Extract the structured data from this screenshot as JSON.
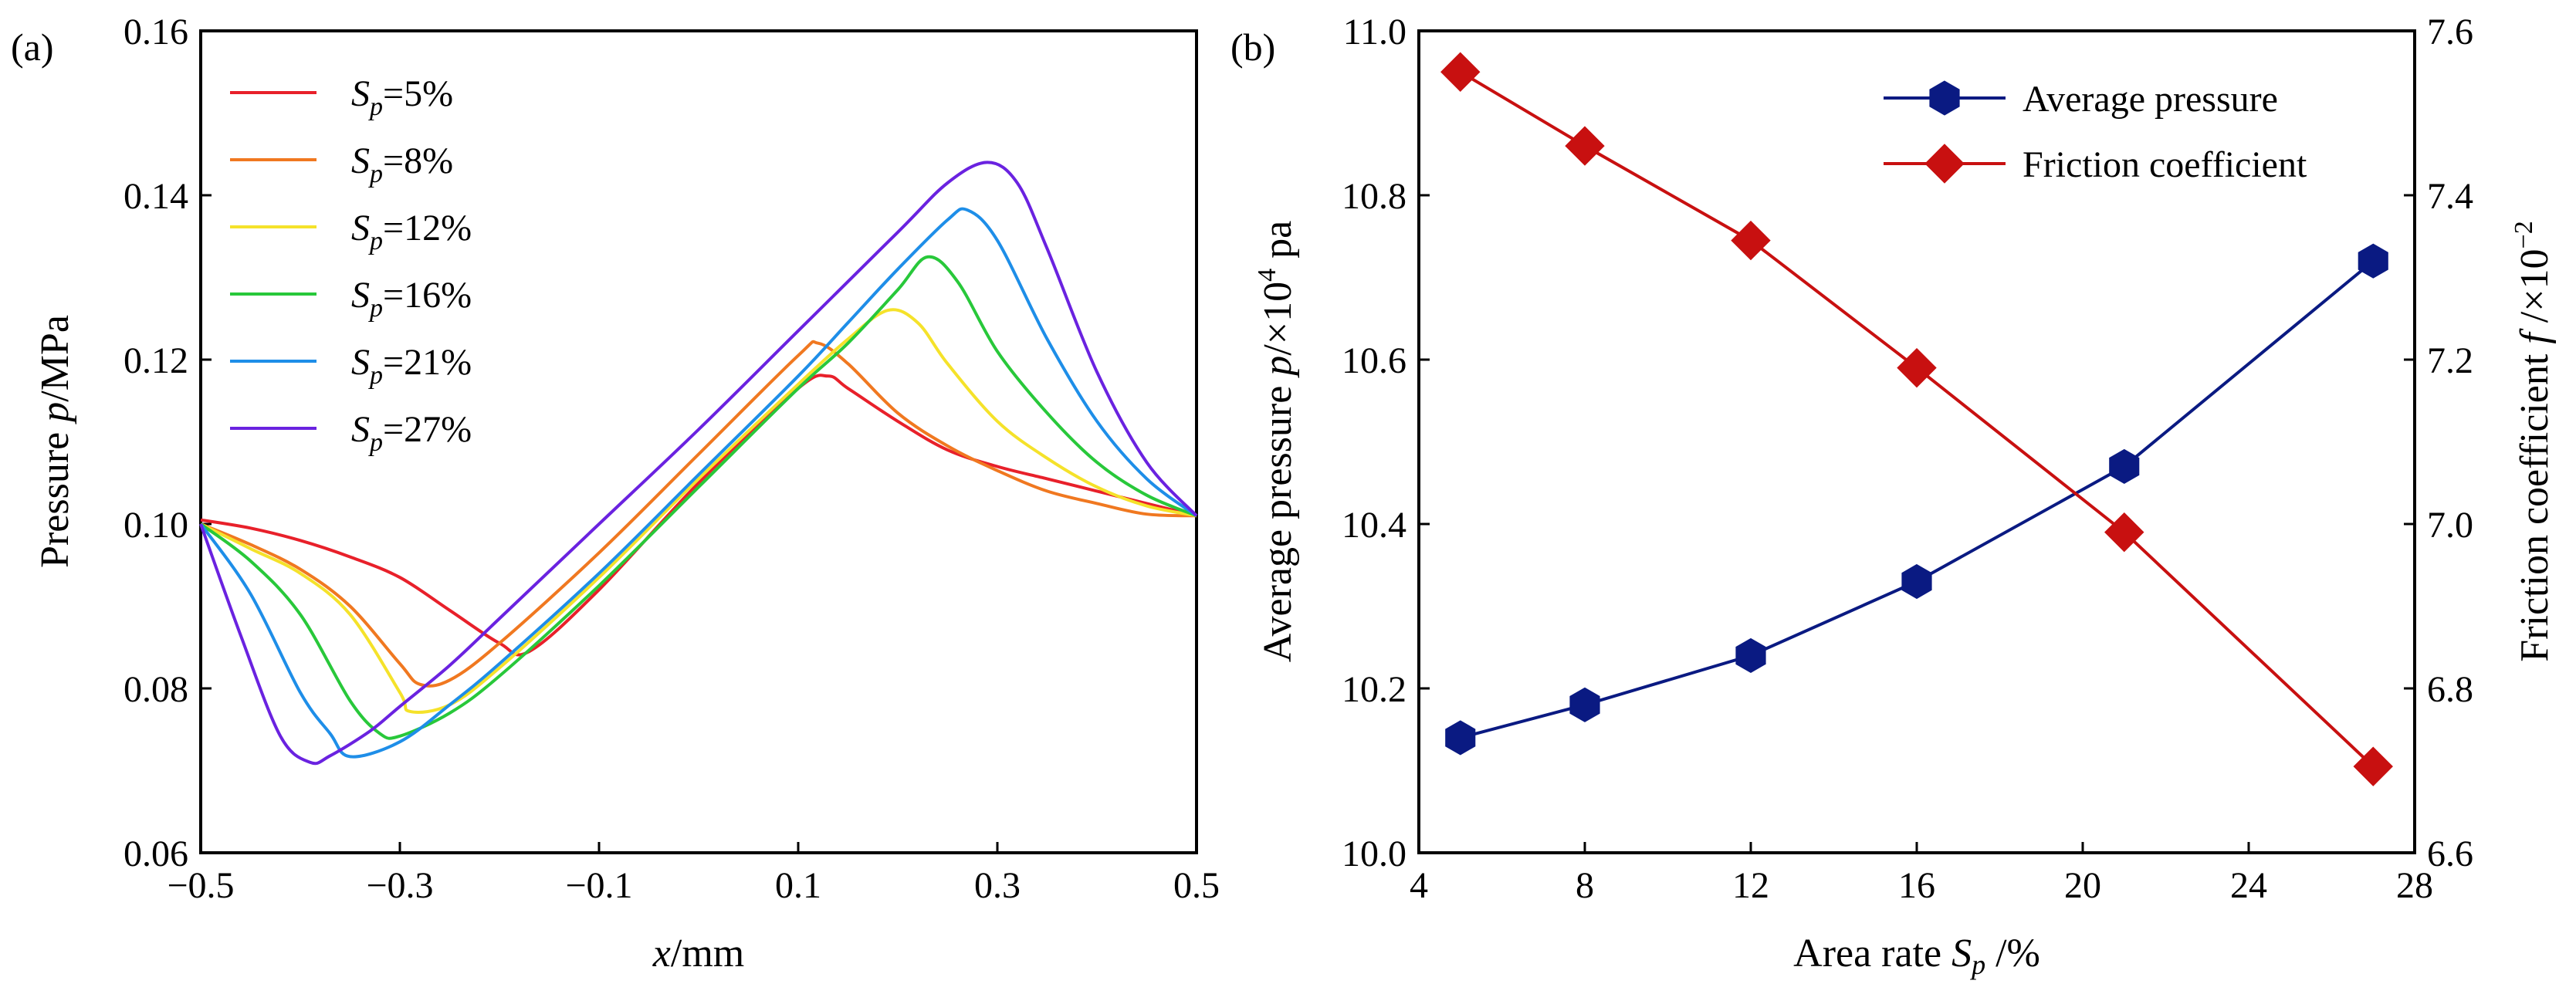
{
  "chart_data": [
    {
      "panel": "(a)",
      "type": "line",
      "xlabel_var": "x",
      "xlabel_unit": "/mm",
      "ylabel_prefix": "Pressure ",
      "ylabel_var": "p",
      "ylabel_unit": "/MPa",
      "xlim": [
        -0.5,
        0.5
      ],
      "ylim": [
        0.06,
        0.16
      ],
      "xticks": [
        -0.5,
        -0.3,
        -0.1,
        0.1,
        0.3,
        0.5
      ],
      "xtick_labels": [
        "−0.5",
        "−0.3",
        "−0.1",
        "0.1",
        "0.3",
        "0.5"
      ],
      "yticks": [
        0.06,
        0.08,
        0.1,
        0.12,
        0.14,
        0.16
      ],
      "ytick_labels": [
        "0.06",
        "0.08",
        "0.10",
        "0.12",
        "0.14",
        "0.16"
      ],
      "legend_position": "top-left",
      "series": [
        {
          "name": "S",
          "sub": "p",
          "value_label": "=5%",
          "color": "#e8202a",
          "x": [
            -0.5,
            -0.45,
            -0.4,
            -0.35,
            -0.3,
            -0.25,
            -0.2,
            -0.17,
            -0.1,
            0.0,
            0.1,
            0.13,
            0.15,
            0.2,
            0.25,
            0.3,
            0.35,
            0.4,
            0.45,
            0.5
          ],
          "y": [
            0.1005,
            0.0995,
            0.098,
            0.096,
            0.0935,
            0.0895,
            0.0855,
            0.0845,
            0.092,
            0.105,
            0.1165,
            0.118,
            0.1165,
            0.1125,
            0.109,
            0.107,
            0.1055,
            0.104,
            0.1025,
            0.101
          ]
        },
        {
          "name": "S",
          "sub": "p",
          "value_label": "=8%",
          "color": "#f07820",
          "x": [
            -0.5,
            -0.45,
            -0.4,
            -0.35,
            -0.3,
            -0.28,
            -0.25,
            -0.2,
            -0.1,
            0.0,
            0.1,
            0.12,
            0.15,
            0.2,
            0.25,
            0.3,
            0.35,
            0.4,
            0.45,
            0.5
          ],
          "y": [
            0.1,
            0.0975,
            0.0945,
            0.09,
            0.083,
            0.0805,
            0.081,
            0.0855,
            0.0965,
            0.1085,
            0.1205,
            0.122,
            0.1195,
            0.1135,
            0.1095,
            0.1065,
            0.104,
            0.1025,
            0.1012,
            0.101
          ]
        },
        {
          "name": "S",
          "sub": "p",
          "value_label": "=12%",
          "color": "#f5e22a",
          "x": [
            -0.5,
            -0.45,
            -0.4,
            -0.35,
            -0.3,
            -0.29,
            -0.25,
            -0.2,
            -0.1,
            0.0,
            0.1,
            0.15,
            0.19,
            0.22,
            0.25,
            0.3,
            0.35,
            0.4,
            0.45,
            0.5
          ],
          "y": [
            0.1,
            0.097,
            0.094,
            0.089,
            0.0795,
            0.0772,
            0.078,
            0.0825,
            0.0935,
            0.1055,
            0.117,
            0.1225,
            0.126,
            0.1245,
            0.1195,
            0.1125,
            0.108,
            0.1045,
            0.1022,
            0.101
          ]
        },
        {
          "name": "S",
          "sub": "p",
          "value_label": "=16%",
          "color": "#28c83a",
          "x": [
            -0.5,
            -0.45,
            -0.4,
            -0.35,
            -0.32,
            -0.3,
            -0.25,
            -0.2,
            -0.1,
            0.0,
            0.1,
            0.15,
            0.2,
            0.23,
            0.26,
            0.3,
            0.35,
            0.4,
            0.45,
            0.5
          ],
          "y": [
            0.1,
            0.0955,
            0.089,
            0.0785,
            0.0745,
            0.0742,
            0.077,
            0.0815,
            0.0925,
            0.1045,
            0.1165,
            0.122,
            0.1285,
            0.1325,
            0.1295,
            0.121,
            0.1135,
            0.1075,
            0.1035,
            0.101
          ]
        },
        {
          "name": "S",
          "sub": "p",
          "value_label": "=21%",
          "color": "#1e8ee8",
          "x": [
            -0.5,
            -0.45,
            -0.4,
            -0.37,
            -0.35,
            -0.3,
            -0.25,
            -0.2,
            -0.1,
            0.0,
            0.1,
            0.15,
            0.2,
            0.25,
            0.27,
            0.3,
            0.35,
            0.4,
            0.45,
            0.5
          ],
          "y": [
            0.1,
            0.0915,
            0.0795,
            0.0745,
            0.0717,
            0.0735,
            0.078,
            0.083,
            0.094,
            0.106,
            0.118,
            0.1245,
            0.131,
            0.137,
            0.1382,
            0.1345,
            0.1225,
            0.1125,
            0.1055,
            0.101
          ]
        },
        {
          "name": "S",
          "sub": "p",
          "value_label": "=27%",
          "color": "#6a22e0",
          "x": [
            -0.5,
            -0.46,
            -0.42,
            -0.39,
            -0.37,
            -0.33,
            -0.3,
            -0.25,
            -0.2,
            -0.1,
            0.0,
            0.1,
            0.2,
            0.25,
            0.29,
            0.32,
            0.35,
            0.4,
            0.45,
            0.5
          ],
          "y": [
            0.1,
            0.0865,
            0.0742,
            0.071,
            0.0718,
            0.0748,
            0.0778,
            0.0828,
            0.0885,
            0.1,
            0.1115,
            0.1235,
            0.1355,
            0.1415,
            0.144,
            0.1415,
            0.1335,
            0.1185,
            0.1075,
            0.101
          ]
        }
      ]
    },
    {
      "panel": "(b)",
      "type": "line",
      "xlabel_prefix": "Area rate ",
      "xlabel_var": "S",
      "xlabel_sub": "p",
      "xlabel_unit": " /%",
      "ylabel_left_prefix": "Average pressure ",
      "ylabel_left_var": "p",
      "ylabel_left_unit": "/×10",
      "ylabel_left_exp": "4",
      "ylabel_left_tail": " pa",
      "ylabel_right_prefix": "Friction coefficient ",
      "ylabel_right_var": "f",
      "ylabel_right_unit": " /×10",
      "ylabel_right_exp": "−2",
      "xlim": [
        4,
        28
      ],
      "ylim_left": [
        10.0,
        11.0
      ],
      "ylim_right": [
        6.6,
        7.6
      ],
      "xticks": [
        4,
        8,
        12,
        16,
        20,
        24,
        28
      ],
      "xtick_labels": [
        "4",
        "8",
        "12",
        "16",
        "20",
        "24",
        "28"
      ],
      "yticks_left": [
        10.0,
        10.2,
        10.4,
        10.6,
        10.8,
        11.0
      ],
      "ytick_labels_left": [
        "10.0",
        "10.2",
        "10.4",
        "10.6",
        "10.8",
        "11.0"
      ],
      "yticks_right": [
        6.6,
        6.8,
        7.0,
        7.2,
        7.4,
        7.6
      ],
      "ytick_labels_right": [
        "6.6",
        "6.8",
        "7.0",
        "7.2",
        "7.4",
        "7.6"
      ],
      "legend_position": "top-right",
      "series": [
        {
          "name": "Average pressure",
          "axis": "left",
          "marker": "hexagon",
          "color": "#0a1a82",
          "x": [
            5,
            8,
            12,
            16,
            21,
            27
          ],
          "y": [
            10.14,
            10.18,
            10.24,
            10.33,
            10.47,
            10.72
          ]
        },
        {
          "name": "Friction coefficient",
          "axis": "right",
          "marker": "diamond",
          "color": "#c81010",
          "x": [
            5,
            8,
            12,
            16,
            21,
            27
          ],
          "y": [
            7.55,
            7.46,
            7.345,
            7.19,
            6.99,
            6.705
          ]
        }
      ]
    }
  ]
}
